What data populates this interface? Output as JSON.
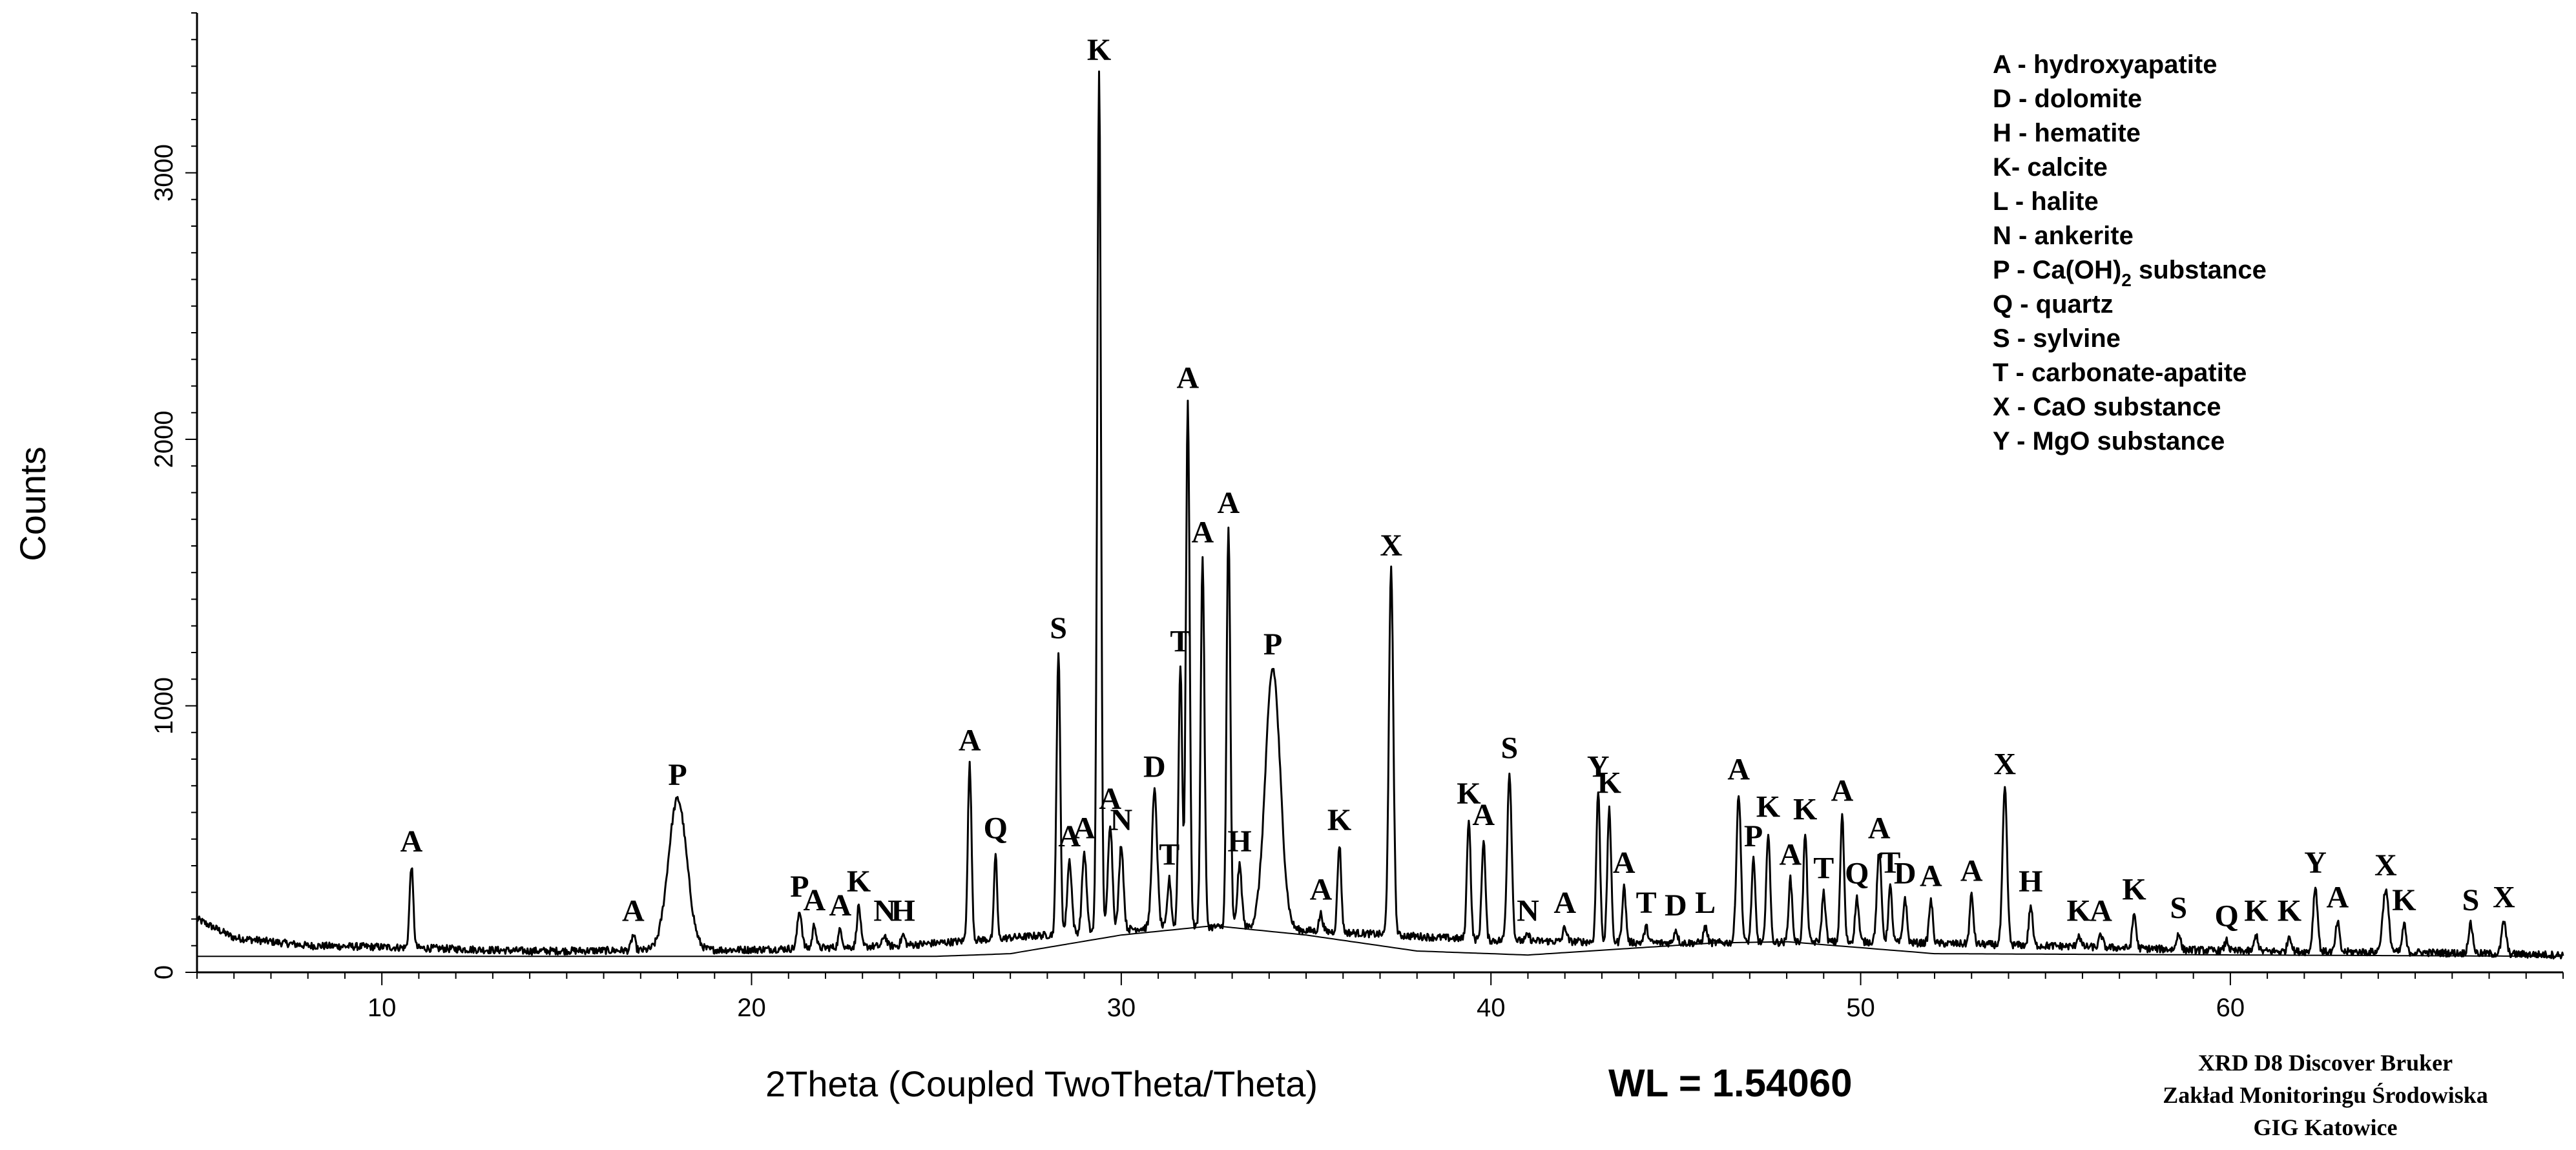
{
  "chart_data": {
    "type": "line",
    "xlabel": "2Theta (Coupled TwoTheta/Theta)",
    "wavelength_label": "WL = 1.54060",
    "ylabel": "Counts",
    "xlim": [
      5,
      69
    ],
    "ylim": [
      0,
      3600
    ],
    "x_ticks": [
      10,
      20,
      30,
      40,
      50,
      60
    ],
    "y_ticks": [
      0,
      1000,
      2000,
      3000
    ],
    "x_minor_step": 1,
    "y_minor_step": 100,
    "grid": false,
    "legend_position": "top-right",
    "legend": [
      "A - hydroxyapatite",
      "D - dolomite",
      "H - hematite",
      "K- calcite",
      "L - halite",
      "N - ankerite",
      "P - Ca(OH)",
      "Q - quartz",
      "S - sylvine",
      "T - carbonate-apatite",
      "X - CaO substance",
      "Y - MgO substance"
    ],
    "legend_p_subscript": "2",
    "legend_p_suffix": " substance",
    "background": [
      [
        5,
        200
      ],
      [
        6,
        130
      ],
      [
        8,
        100
      ],
      [
        10,
        95
      ],
      [
        14,
        80
      ],
      [
        20,
        85
      ],
      [
        24,
        100
      ],
      [
        28,
        140
      ],
      [
        31,
        170
      ],
      [
        33,
        170
      ],
      [
        36,
        150
      ],
      [
        40,
        120
      ],
      [
        45,
        110
      ],
      [
        50,
        115
      ],
      [
        55,
        100
      ],
      [
        60,
        80
      ],
      [
        65,
        75
      ],
      [
        69,
        65
      ]
    ],
    "baseline": [
      [
        5,
        60
      ],
      [
        25,
        60
      ],
      [
        27,
        70
      ],
      [
        30,
        140
      ],
      [
        32.5,
        175
      ],
      [
        35,
        140
      ],
      [
        38,
        80
      ],
      [
        41,
        65
      ],
      [
        46,
        110
      ],
      [
        48,
        115
      ],
      [
        52,
        70
      ],
      [
        69,
        60
      ]
    ],
    "peaks": [
      {
        "x": 10.8,
        "y": 400,
        "w": 0.05,
        "label": "A"
      },
      {
        "x": 16.8,
        "y": 140,
        "w": 0.05,
        "label": "A"
      },
      {
        "x": 18.0,
        "y": 650,
        "w": 0.25,
        "label": "P"
      },
      {
        "x": 21.3,
        "y": 230,
        "w": 0.06,
        "label": "P"
      },
      {
        "x": 21.7,
        "y": 180,
        "w": 0.05,
        "label": "A"
      },
      {
        "x": 22.4,
        "y": 160,
        "w": 0.05,
        "label": "A"
      },
      {
        "x": 22.9,
        "y": 250,
        "w": 0.05,
        "label": "K"
      },
      {
        "x": 23.6,
        "y": 140,
        "w": 0.05,
        "label": "N"
      },
      {
        "x": 24.1,
        "y": 140,
        "w": 0.05,
        "label": "H"
      },
      {
        "x": 25.9,
        "y": 780,
        "w": 0.05,
        "label": "A"
      },
      {
        "x": 26.6,
        "y": 450,
        "w": 0.04,
        "label": "Q"
      },
      {
        "x": 28.3,
        "y": 1200,
        "w": 0.05,
        "label": "S"
      },
      {
        "x": 28.6,
        "y": 420,
        "w": 0.06,
        "label": "A"
      },
      {
        "x": 29.0,
        "y": 450,
        "w": 0.06,
        "label": "A"
      },
      {
        "x": 29.4,
        "y": 3370,
        "w": 0.05,
        "label": "K"
      },
      {
        "x": 29.7,
        "y": 560,
        "w": 0.06,
        "label": "A"
      },
      {
        "x": 30.0,
        "y": 480,
        "w": 0.06,
        "label": "N"
      },
      {
        "x": 30.9,
        "y": 680,
        "w": 0.07,
        "label": "D"
      },
      {
        "x": 31.3,
        "y": 350,
        "w": 0.05,
        "label": "T"
      },
      {
        "x": 31.6,
        "y": 1150,
        "w": 0.05,
        "label": "T"
      },
      {
        "x": 31.8,
        "y": 2140,
        "w": 0.05,
        "label": "A"
      },
      {
        "x": 32.2,
        "y": 1560,
        "w": 0.05,
        "label": "A"
      },
      {
        "x": 32.9,
        "y": 1670,
        "w": 0.05,
        "label": "A"
      },
      {
        "x": 33.2,
        "y": 400,
        "w": 0.06,
        "label": "H"
      },
      {
        "x": 34.1,
        "y": 1140,
        "w": 0.2,
        "label": "P"
      },
      {
        "x": 35.4,
        "y": 220,
        "w": 0.05,
        "label": "A"
      },
      {
        "x": 35.9,
        "y": 480,
        "w": 0.05,
        "label": "K"
      },
      {
        "x": 37.3,
        "y": 1510,
        "w": 0.06,
        "label": "X"
      },
      {
        "x": 39.4,
        "y": 580,
        "w": 0.05,
        "label": "K"
      },
      {
        "x": 39.8,
        "y": 500,
        "w": 0.05,
        "label": "A"
      },
      {
        "x": 40.5,
        "y": 750,
        "w": 0.06,
        "label": "S"
      },
      {
        "x": 41.0,
        "y": 140,
        "w": 0.05,
        "label": "N"
      },
      {
        "x": 42.0,
        "y": 170,
        "w": 0.05,
        "label": "A"
      },
      {
        "x": 42.9,
        "y": 680,
        "w": 0.05,
        "label": "Y"
      },
      {
        "x": 43.2,
        "y": 620,
        "w": 0.05,
        "label": "K"
      },
      {
        "x": 43.6,
        "y": 320,
        "w": 0.05,
        "label": "A"
      },
      {
        "x": 44.2,
        "y": 170,
        "w": 0.05,
        "label": "T"
      },
      {
        "x": 45.0,
        "y": 160,
        "w": 0.05,
        "label": "D"
      },
      {
        "x": 45.8,
        "y": 170,
        "w": 0.05,
        "label": "L"
      },
      {
        "x": 46.7,
        "y": 670,
        "w": 0.06,
        "label": "A"
      },
      {
        "x": 47.1,
        "y": 420,
        "w": 0.05,
        "label": "P"
      },
      {
        "x": 47.5,
        "y": 530,
        "w": 0.05,
        "label": "K"
      },
      {
        "x": 48.1,
        "y": 350,
        "w": 0.05,
        "label": "A"
      },
      {
        "x": 48.5,
        "y": 520,
        "w": 0.05,
        "label": "K"
      },
      {
        "x": 49.0,
        "y": 300,
        "w": 0.05,
        "label": "T"
      },
      {
        "x": 49.5,
        "y": 590,
        "w": 0.05,
        "label": "A"
      },
      {
        "x": 49.9,
        "y": 280,
        "w": 0.05,
        "label": "Q"
      },
      {
        "x": 50.5,
        "y": 450,
        "w": 0.06,
        "label": "A"
      },
      {
        "x": 50.8,
        "y": 320,
        "w": 0.05,
        "label": "T"
      },
      {
        "x": 51.2,
        "y": 280,
        "w": 0.05,
        "label": "D"
      },
      {
        "x": 51.9,
        "y": 270,
        "w": 0.05,
        "label": "A"
      },
      {
        "x": 53.0,
        "y": 290,
        "w": 0.05,
        "label": "A"
      },
      {
        "x": 53.9,
        "y": 690,
        "w": 0.06,
        "label": "X"
      },
      {
        "x": 54.6,
        "y": 250,
        "w": 0.05,
        "label": "H"
      },
      {
        "x": 55.9,
        "y": 140,
        "w": 0.05,
        "label": "K"
      },
      {
        "x": 56.5,
        "y": 140,
        "w": 0.05,
        "label": "A"
      },
      {
        "x": 57.4,
        "y": 220,
        "w": 0.05,
        "label": "K"
      },
      {
        "x": 58.6,
        "y": 150,
        "w": 0.05,
        "label": "S"
      },
      {
        "x": 59.9,
        "y": 120,
        "w": 0.05,
        "label": "Q"
      },
      {
        "x": 60.7,
        "y": 140,
        "w": 0.05,
        "label": "K"
      },
      {
        "x": 61.6,
        "y": 140,
        "w": 0.05,
        "label": "K"
      },
      {
        "x": 62.3,
        "y": 320,
        "w": 0.06,
        "label": "Y"
      },
      {
        "x": 62.9,
        "y": 190,
        "w": 0.05,
        "label": "A"
      },
      {
        "x": 64.2,
        "y": 310,
        "w": 0.08,
        "label": "X"
      },
      {
        "x": 64.7,
        "y": 180,
        "w": 0.05,
        "label": "K"
      },
      {
        "x": 66.5,
        "y": 180,
        "w": 0.06,
        "label": "S"
      },
      {
        "x": 67.4,
        "y": 190,
        "w": 0.06,
        "label": "X"
      }
    ]
  },
  "credits": {
    "line1": "XRD D8 Discover Bruker",
    "line2": "Zakład Monitoringu Środowiska",
    "line3": "GIG Katowice"
  }
}
